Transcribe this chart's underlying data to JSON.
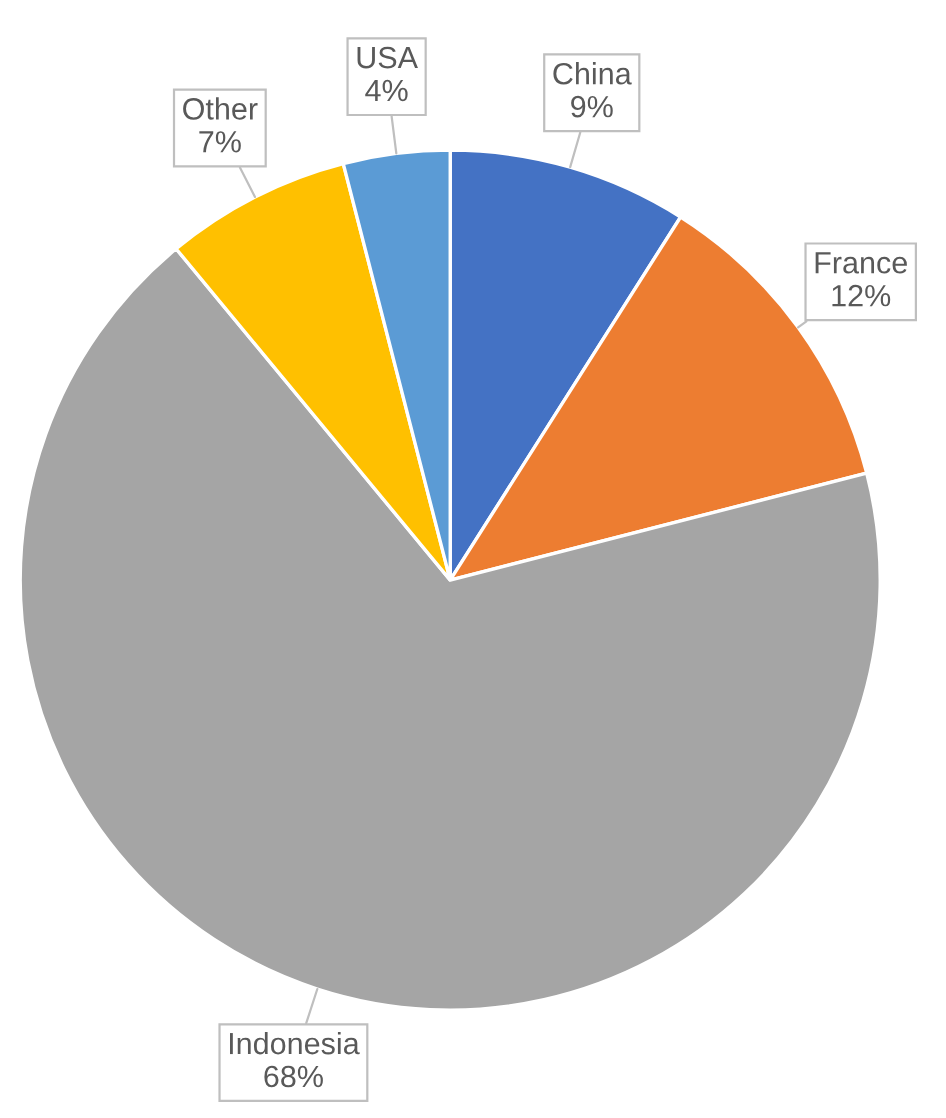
{
  "chart_data": {
    "type": "pie",
    "categories": [
      "China",
      "France",
      "Indonesia",
      "Other",
      "USA"
    ],
    "values": [
      9,
      12,
      68,
      7,
      4
    ],
    "value_labels": [
      "9%",
      "12%",
      "68%",
      "7%",
      "4%"
    ],
    "colors": [
      "#4472c4",
      "#ed7d31",
      "#a5a5a5",
      "#ffc000",
      "#5b9bd5"
    ],
    "legend": false
  }
}
